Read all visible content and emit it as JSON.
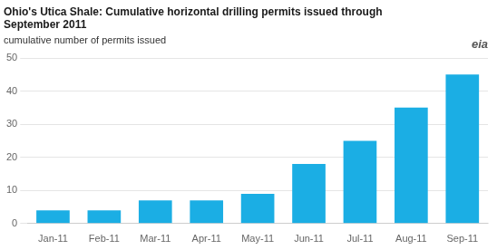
{
  "chart_data": {
    "type": "bar",
    "title": [
      "Ohio's Utica Shale: Cumulative horizontal drilling permits issued through",
      "September 2011"
    ],
    "subtitle": "cumulative number of permits issued",
    "annotation": "eia",
    "categories": [
      "Jan-11",
      "Feb-11",
      "Mar-11",
      "Apr-11",
      "May-11",
      "Jun-11",
      "Jul-11",
      "Aug-11",
      "Sep-11"
    ],
    "values": [
      4,
      4,
      7,
      7,
      9,
      18,
      25,
      35,
      45
    ],
    "color": "#1baee4",
    "ylim": [
      0,
      50
    ],
    "yticks": [
      0,
      10,
      20,
      30,
      40,
      50
    ],
    "grid": true
  }
}
